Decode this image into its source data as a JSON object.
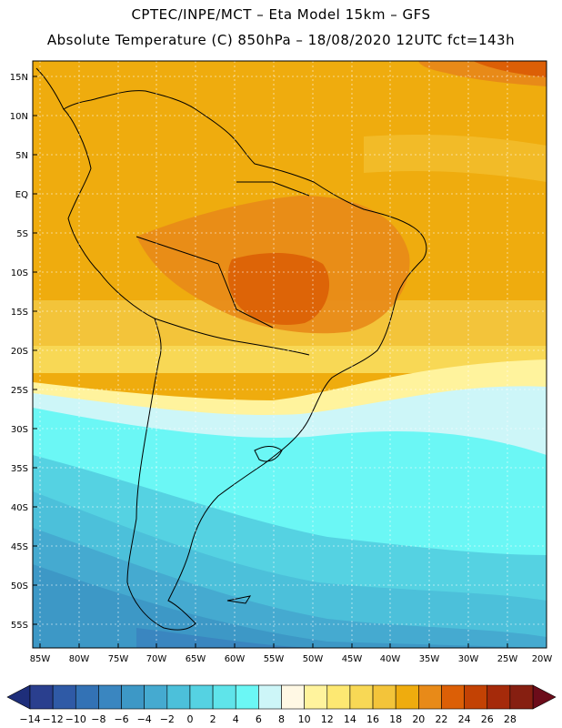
{
  "header": {
    "line1": "CPTEC/INPE/MCT –  Eta Model 15km – GFS",
    "line2": "Absolute Temperature (C) 850hPa – 18/08/2020 12UTC fct=143h"
  },
  "map": {
    "lat_labels": [
      "15N",
      "10N",
      "5N",
      "EQ",
      "5S",
      "10S",
      "15S",
      "20S",
      "25S",
      "30S",
      "35S",
      "40S",
      "45S",
      "50S",
      "55S"
    ],
    "lon_labels": [
      "85W",
      "80W",
      "75W",
      "70W",
      "65W",
      "60W",
      "55W",
      "50W",
      "45W",
      "40W",
      "35W",
      "30W",
      "25W",
      "20W"
    ]
  },
  "colorbar": {
    "labels": [
      "-14",
      "-12",
      "-10",
      "-8",
      "-6",
      "-4",
      "-2",
      "0",
      "2",
      "4",
      "6",
      "8",
      "10",
      "12",
      "14",
      "16",
      "18",
      "20",
      "22",
      "24",
      "26",
      "28"
    ],
    "colors": [
      "#2a3f8e",
      "#2f5aa6",
      "#3372b5",
      "#3a86c0",
      "#3d98c6",
      "#45aad0",
      "#4cc0da",
      "#55d2e2",
      "#5fe4ea",
      "#6bf7f5",
      "#cdf6f8",
      "#fff8e4",
      "#fff39d",
      "#fde872",
      "#f8d855",
      "#f3c43a",
      "#efac0e",
      "#e88a18",
      "#dc5f06",
      "#c34204",
      "#a52a0a",
      "#861f11"
    ],
    "under_color": "#1e2e7a",
    "over_color": "#6c0c1a"
  }
}
